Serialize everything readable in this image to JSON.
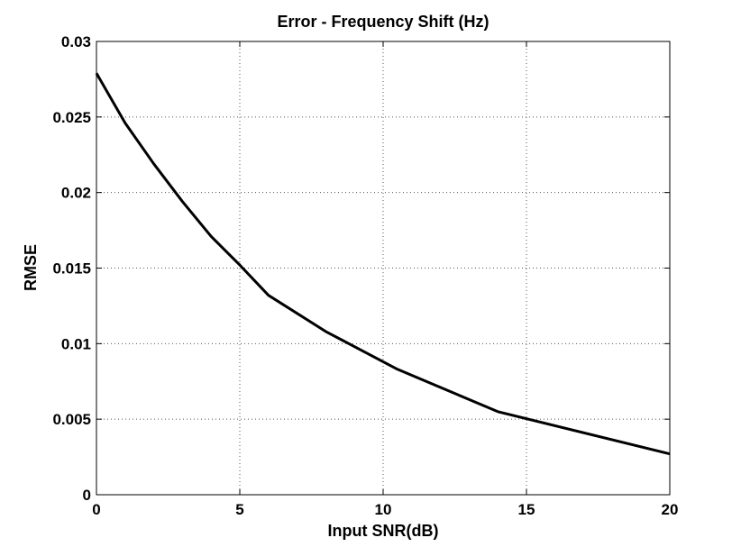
{
  "chart_data": {
    "type": "line",
    "title": "Error - Frequency Shift (Hz)",
    "xlabel": "Input SNR(dB)",
    "ylabel": "RMSE",
    "xlim": [
      0,
      20
    ],
    "ylim": [
      0,
      0.03
    ],
    "xticks": [
      0,
      5,
      10,
      15,
      20
    ],
    "xtick_labels": [
      "0",
      "5",
      "10",
      "15",
      "20"
    ],
    "yticks": [
      0,
      0.005,
      0.01,
      0.015,
      0.02,
      0.025,
      0.03
    ],
    "ytick_labels": [
      "0",
      "0.005",
      "0.01",
      "0.015",
      "0.02",
      "0.025",
      "0.03"
    ],
    "grid": true,
    "grid_style": "dotted",
    "line_color": "#000000",
    "series": [
      {
        "x": [
          0,
          1,
          2,
          3,
          4,
          5,
          6,
          8,
          10.5,
          14,
          20
        ],
        "values": [
          0.0279,
          0.0246,
          0.0219,
          0.0194,
          0.0171,
          0.0152,
          0.0132,
          0.0108,
          0.0083,
          0.0055,
          0.0027
        ]
      }
    ]
  }
}
